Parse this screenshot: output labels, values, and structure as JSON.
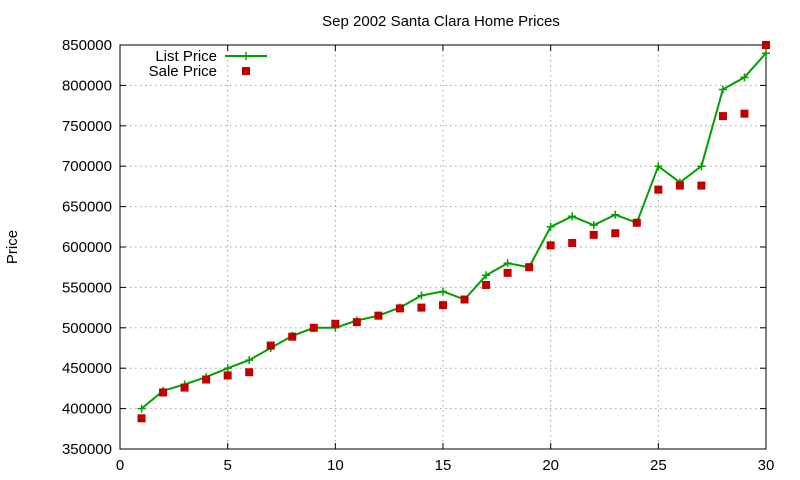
{
  "chart_data": {
    "type": "line",
    "title": "Sep 2002 Santa Clara Home Prices",
    "xlabel": "",
    "ylabel": "Price",
    "xlim": [
      0,
      30
    ],
    "ylim": [
      350000,
      850000
    ],
    "x_ticks": [
      "0",
      "5",
      "10",
      "15",
      "20",
      "25",
      "30"
    ],
    "y_ticks": [
      "350000",
      "400000",
      "450000",
      "500000",
      "550000",
      "600000",
      "650000",
      "700000",
      "750000",
      "800000",
      "850000"
    ],
    "grid": true,
    "legend_position": "top-left",
    "x": [
      1,
      2,
      3,
      4,
      5,
      6,
      7,
      8,
      9,
      10,
      11,
      12,
      13,
      14,
      15,
      16,
      17,
      18,
      19,
      20,
      21,
      22,
      23,
      24,
      25,
      26,
      27,
      28,
      29,
      30
    ],
    "series": [
      {
        "name": "List Price",
        "style": "lines+crosses",
        "color": "#00a000",
        "values": [
          400000,
          422000,
          430000,
          439000,
          450000,
          460000,
          475000,
          490000,
          500000,
          500000,
          509000,
          515000,
          525000,
          540000,
          545000,
          535000,
          565000,
          580000,
          575000,
          625000,
          638000,
          627000,
          640000,
          630000,
          700000,
          680000,
          700000,
          795000,
          810000,
          840000
        ]
      },
      {
        "name": "Sale Price",
        "style": "squares",
        "color": "#c00000",
        "values": [
          388000,
          420000,
          426000,
          436000,
          441000,
          445000,
          478000,
          489000,
          500000,
          505000,
          507000,
          515000,
          524000,
          525000,
          528000,
          535000,
          553000,
          568000,
          575000,
          602000,
          605000,
          615000,
          617000,
          630000,
          671000,
          676000,
          676000,
          762000,
          765000,
          850000
        ]
      }
    ]
  }
}
